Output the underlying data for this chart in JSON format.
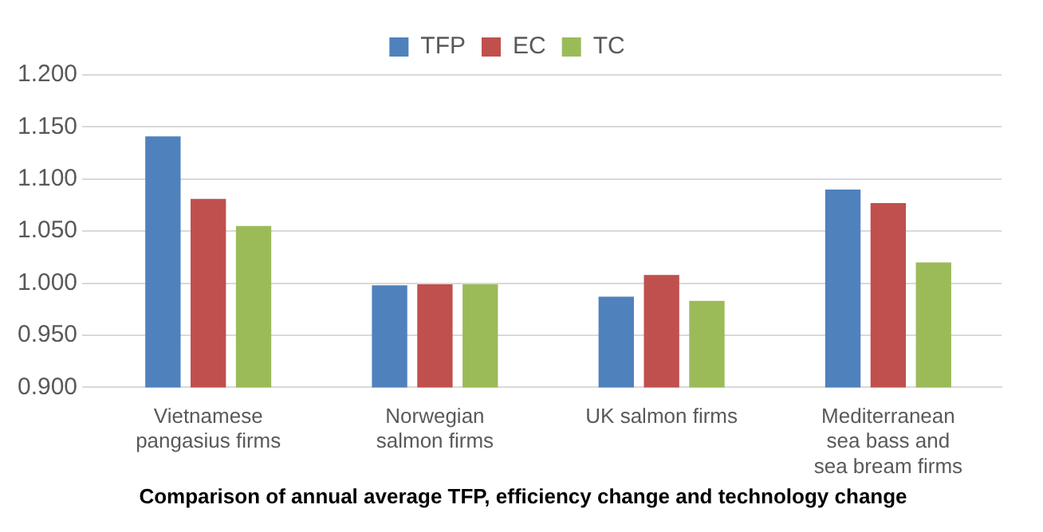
{
  "chart_data": {
    "type": "bar",
    "categories": [
      "Vietnamese pangasius firms",
      "Norwegian salmon firms",
      "UK salmon firms",
      "Mediterranean sea bass and sea bream firms"
    ],
    "series": [
      {
        "name": "TFP",
        "color": "#4f81bd",
        "values": [
          1.141,
          0.998,
          0.987,
          1.09
        ]
      },
      {
        "name": "EC",
        "color": "#c0504d",
        "values": [
          1.081,
          0.999,
          1.008,
          1.077
        ]
      },
      {
        "name": "TC",
        "color": "#9bbb59",
        "values": [
          1.055,
          0.999,
          0.983,
          1.02
        ]
      }
    ],
    "ylim": [
      0.9,
      1.2
    ],
    "yticks": [
      {
        "value": 0.9,
        "label": "0.900"
      },
      {
        "value": 0.95,
        "label": "0.950"
      },
      {
        "value": 1.0,
        "label": "1.000"
      },
      {
        "value": 1.05,
        "label": "1.050"
      },
      {
        "value": 1.1,
        "label": "1.100"
      },
      {
        "value": 1.15,
        "label": "1.150"
      },
      {
        "value": 1.2,
        "label": "1.200"
      }
    ],
    "grid": "y",
    "legend": "top",
    "annotations": [
      "Comparison of annual average TFP, efficiency change and technology change"
    ]
  }
}
